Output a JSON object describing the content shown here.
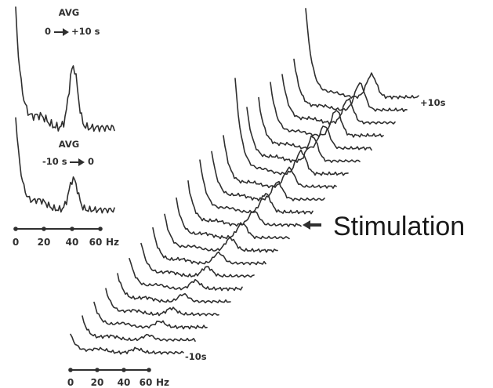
{
  "chart_data": [
    {
      "type": "line",
      "title_line1": "AVG",
      "title_from": "0",
      "title_to": "+10 s",
      "x_tick_labels": [
        "0",
        "20",
        "40",
        "60"
      ],
      "x_unit": "Hz",
      "profile": {
        "peak_hz": 42,
        "peak": 0.52,
        "low_start": 1.0
      }
    },
    {
      "type": "line",
      "title_line1": "AVG",
      "title_from": "-10 s",
      "title_to": "0",
      "x_tick_labels": [
        "0",
        "20",
        "40",
        "60"
      ],
      "x_unit": "Hz",
      "profile": {
        "peak_hz": 42,
        "peak": 0.33,
        "low_start": 1.0
      }
    },
    {
      "type": "line",
      "series_start_label": "-10s",
      "series_end_label": "+10s",
      "x_tick_labels": [
        "0",
        "20",
        "40",
        "60"
      ],
      "x_unit": "Hz",
      "traces": [
        {
          "low": 0.45,
          "peak": 0.1
        },
        {
          "low": 0.55,
          "peak": 0.12
        },
        {
          "low": 0.6,
          "peak": 0.14
        },
        {
          "low": 0.62,
          "peak": 0.15
        },
        {
          "low": 0.68,
          "peak": 0.18
        },
        {
          "low": 0.78,
          "peak": 0.2
        },
        {
          "low": 0.82,
          "peak": 0.22
        },
        {
          "low": 0.85,
          "peak": 0.25
        },
        {
          "low": 0.88,
          "peak": 0.3
        },
        {
          "low": 0.95,
          "peak": 0.35
        },
        {
          "low": 1.05,
          "peak": 0.33
        },
        {
          "low": 1.3,
          "peak": 0.45
        },
        {
          "low": 1.2,
          "peak": 0.42
        },
        {
          "low": 1.25,
          "peak": 0.45
        },
        {
          "low": 2.35,
          "peak": 0.55
        },
        {
          "low": 1.3,
          "peak": 0.6
        },
        {
          "low": 1.2,
          "peak": 0.55
        },
        {
          "low": 1.3,
          "peak": 0.62
        },
        {
          "low": 1.2,
          "peak": 0.58
        },
        {
          "low": 1.25,
          "peak": 0.65
        },
        {
          "low": 2.2,
          "peak": 0.55
        }
      ],
      "annotation": "Stimulation"
    }
  ]
}
